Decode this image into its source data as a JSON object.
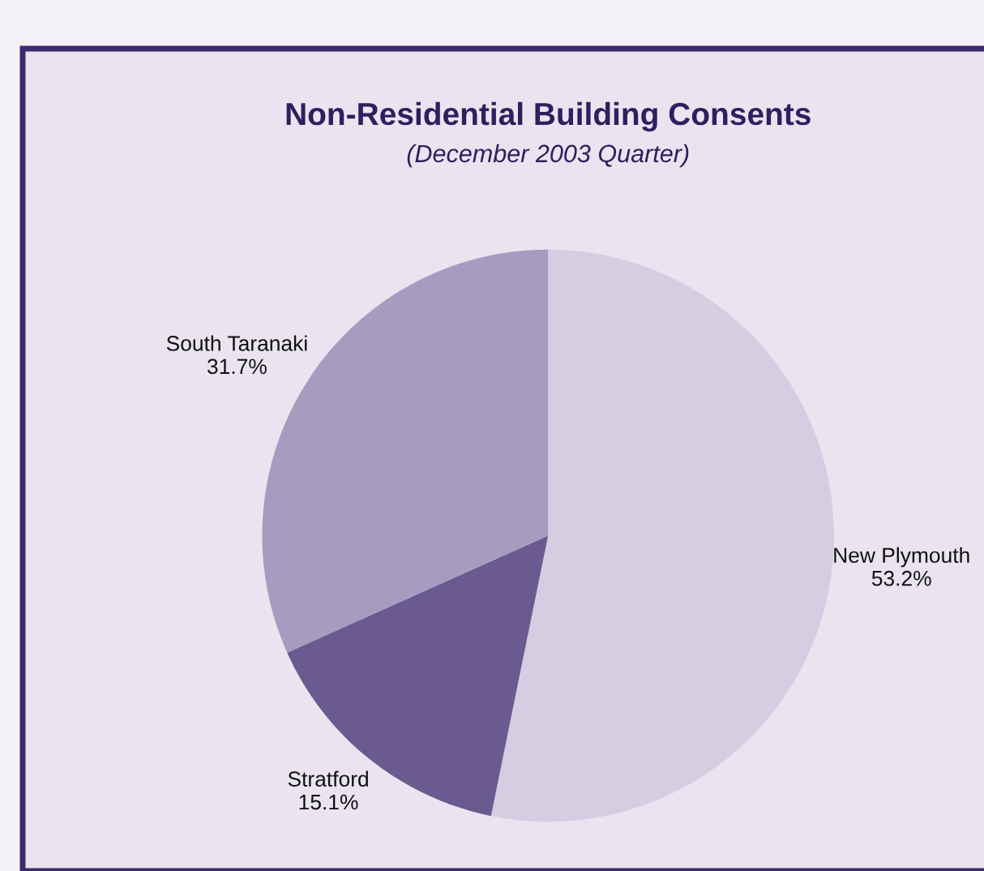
{
  "chart_data": {
    "type": "pie",
    "title": "Non-Residential Building Consents",
    "subtitle": "(December 2003 Quarter)",
    "categories": [
      "New Plymouth",
      "Stratford",
      "South Taranaki"
    ],
    "values": [
      53.2,
      15.1,
      31.7
    ],
    "colors": [
      "#d5cee3",
      "#6a5a8f",
      "#a69cc0"
    ],
    "value_labels": [
      "53.2%",
      "15.1%",
      "31.7%"
    ],
    "legend": false
  }
}
